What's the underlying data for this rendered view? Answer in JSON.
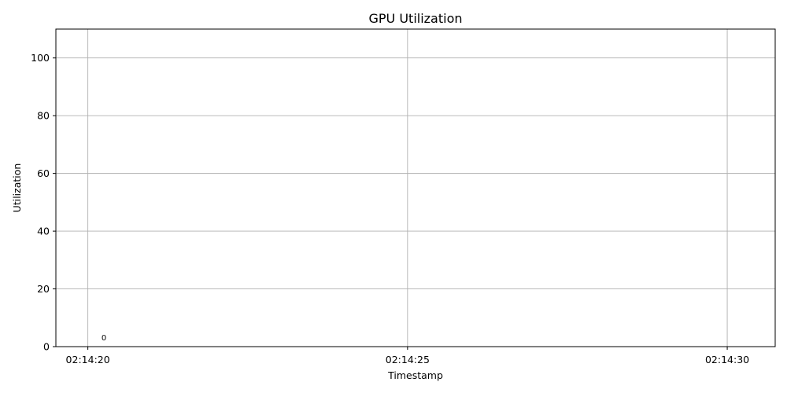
{
  "chart_data": {
    "type": "line",
    "title": "GPU Utilization",
    "xlabel": "Timestamp",
    "ylabel": "Utilization",
    "ylim": [
      0,
      110
    ],
    "xlim": [
      "02:14:19.5",
      "02:14:30.75"
    ],
    "x_ticks": [
      "02:14:20",
      "02:14:25",
      "02:14:30"
    ],
    "y_ticks": [
      0,
      20,
      40,
      60,
      80,
      100
    ],
    "grid": true,
    "series": [
      {
        "x": [
          "02:14:20.25"
        ],
        "values": [
          0
        ],
        "labels": [
          "0"
        ]
      }
    ]
  }
}
